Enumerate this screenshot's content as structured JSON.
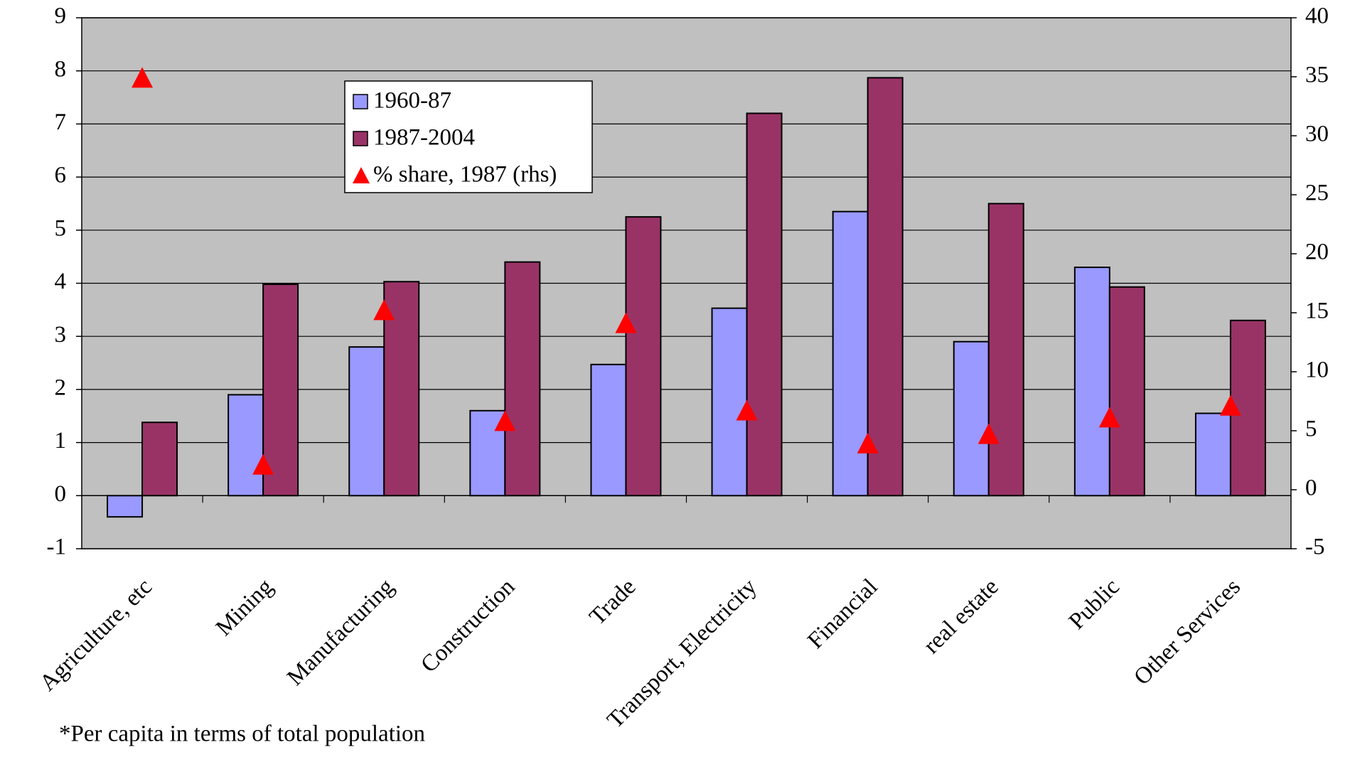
{
  "chart_data": {
    "type": "bar",
    "categories": [
      "Agriculture, etc",
      "Mining",
      "Manufacturing",
      "Construction",
      "Trade",
      "Transport, Electricity",
      "Financial",
      "real estate",
      "Public",
      "Other Services"
    ],
    "series": [
      {
        "name": "1960-87",
        "color": "#9999ff",
        "values": [
          -0.4,
          1.9,
          2.8,
          1.6,
          2.47,
          3.53,
          5.35,
          2.9,
          4.3,
          1.55
        ]
      },
      {
        "name": "1987-2004",
        "color": "#993366",
        "values": [
          1.38,
          3.98,
          4.03,
          4.4,
          5.25,
          7.2,
          7.87,
          5.5,
          3.93,
          3.3
        ]
      },
      {
        "name": "% share, 1987 (rhs)",
        "color": "#ff0000",
        "axis": "y2",
        "marker": "triangle",
        "values": [
          34.8,
          2.0,
          15.1,
          5.7,
          14.0,
          6.6,
          3.8,
          4.6,
          6.0,
          7.0
        ]
      }
    ],
    "ylim": [
      -1,
      9
    ],
    "yticks": [
      -1,
      0,
      1,
      2,
      3,
      4,
      5,
      6,
      7,
      8,
      9
    ],
    "y2lim": [
      -5,
      40
    ],
    "y2ticks": [
      -5,
      0,
      5,
      10,
      15,
      20,
      25,
      30,
      35,
      40
    ],
    "grid": true,
    "background": "#c0c0c0",
    "note": "*Per capita in terms of total population"
  }
}
